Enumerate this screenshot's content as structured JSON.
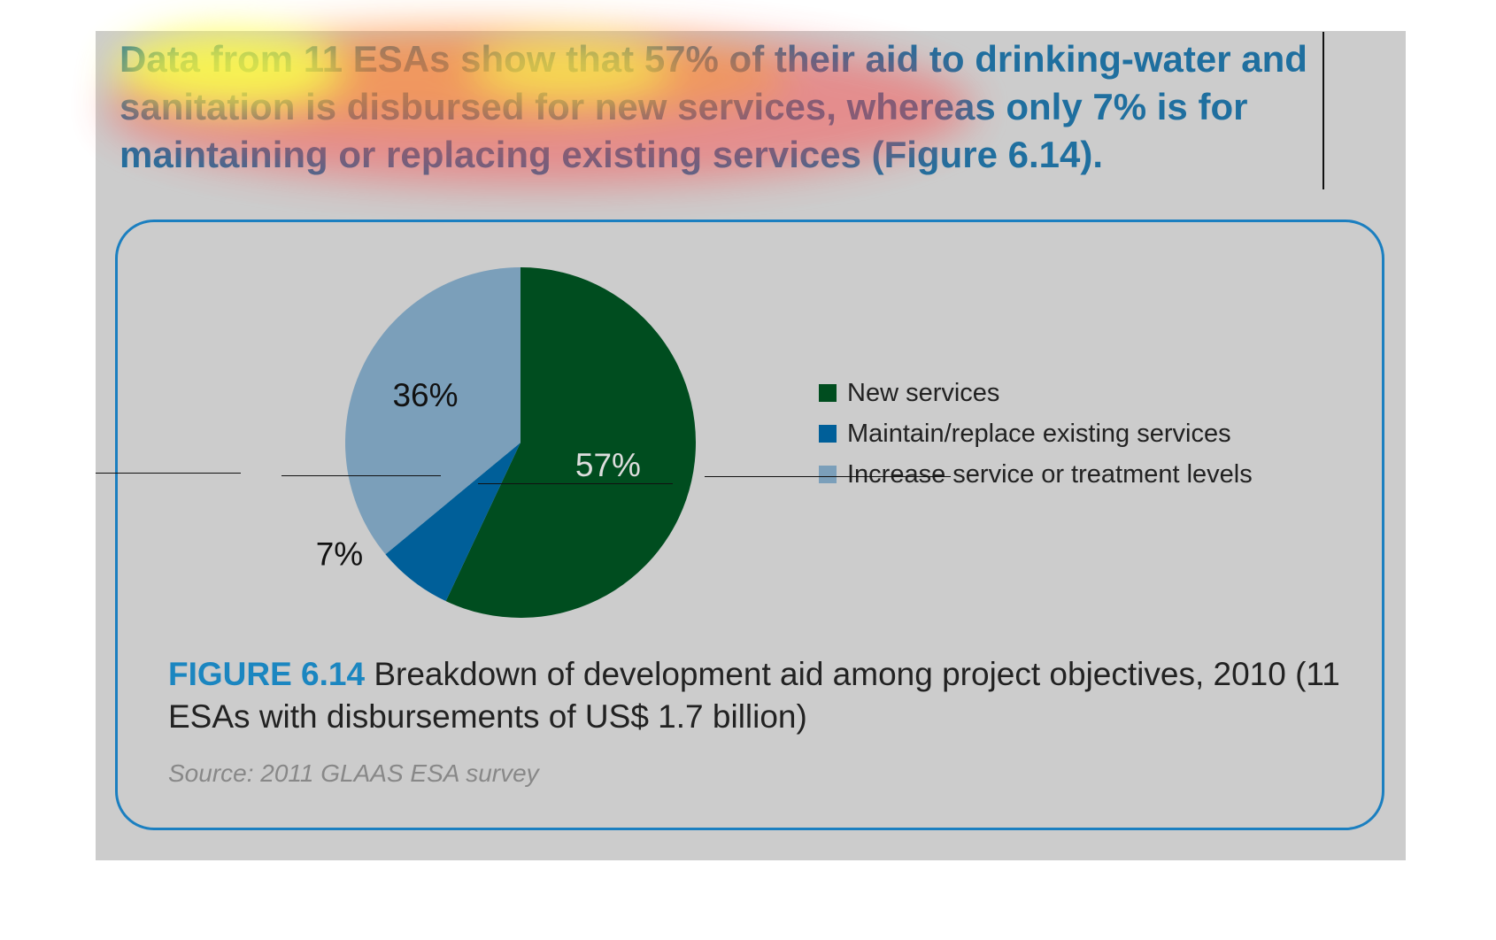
{
  "heading": "Data from 11 ESAs show that 57% of their aid to drinking-water and sanitation is disbursed for new services, whereas only 7% is for maintaining or replacing existing services (Figure 6.14).",
  "colors": {
    "panel_bg": "#cccccc",
    "heading_text": "#1f6f9f",
    "figure_border": "#1b7fc0",
    "caption_label": "#1b86c0",
    "source_text": "#888888"
  },
  "chart_data": {
    "type": "pie",
    "title": "",
    "slices": [
      {
        "label": "New services",
        "value": 57,
        "value_label": "57%",
        "color": "#004d1f",
        "label_color": "#dddddd"
      },
      {
        "label": "Maintain/replace existing services",
        "value": 7,
        "value_label": "7%",
        "color": "#005f99",
        "label_color": "#111111"
      },
      {
        "label": "Increase service or treatment levels",
        "value": 36,
        "value_label": "36%",
        "color": "#7b9fba",
        "label_color": "#111111"
      }
    ],
    "legend_placement": "right"
  },
  "caption": {
    "label": "FIGURE 6.14",
    "text": " Breakdown of development aid among project objectives, 2010 (11 ESAs with disbursements of US$ 1.7 billion)"
  },
  "source": "Source: 2011 GLAAS ESA survey"
}
